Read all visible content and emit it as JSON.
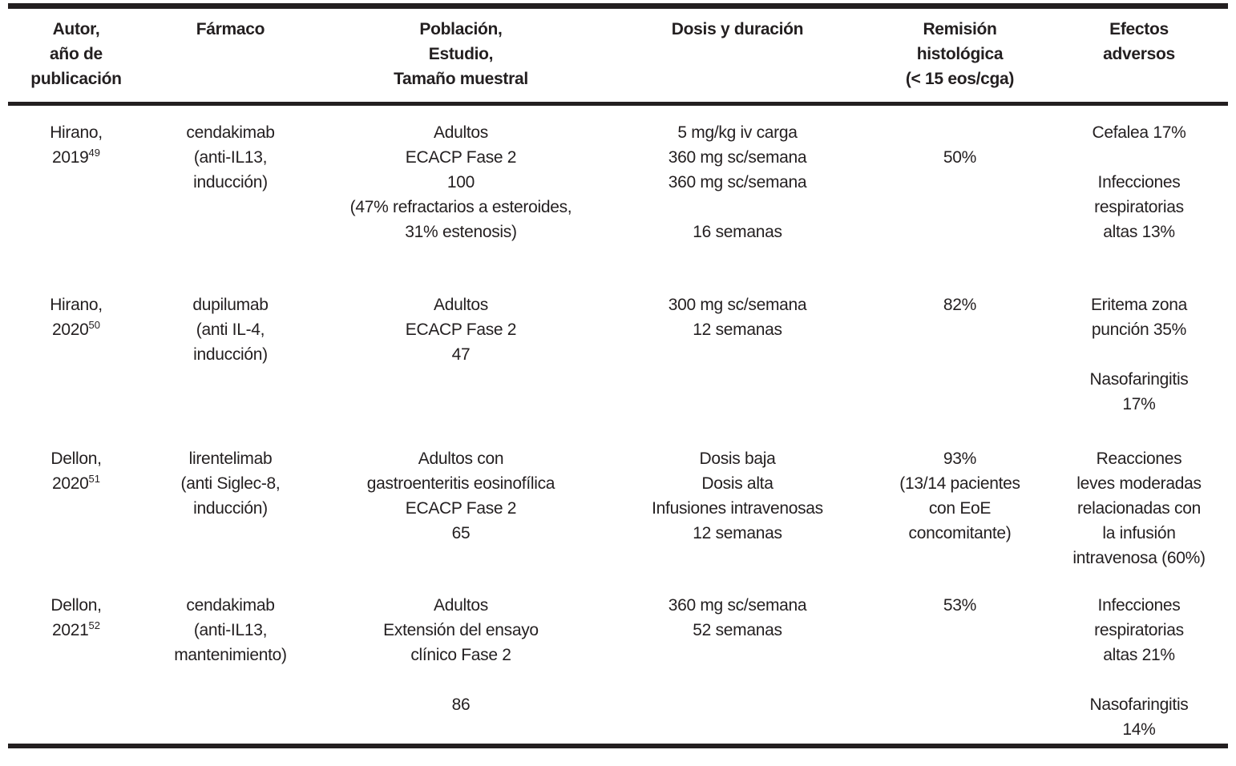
{
  "colors": {
    "text": "#231f20",
    "rule": "#231f20",
    "background": "#ffffff"
  },
  "table": {
    "columns": [
      {
        "id": "autor",
        "lines": [
          "Autor,",
          "año de",
          "publicación"
        ]
      },
      {
        "id": "farmaco",
        "lines": [
          "Fármaco"
        ]
      },
      {
        "id": "poblacion",
        "lines": [
          "Población,",
          "Estudio,",
          "Tamaño muestral"
        ]
      },
      {
        "id": "dosis",
        "lines": [
          "Dosis y duración"
        ]
      },
      {
        "id": "remision",
        "lines": [
          "Remisión",
          "histológica",
          "(< 15 eos/cga)"
        ]
      },
      {
        "id": "efectos",
        "lines": [
          "Efectos",
          "adversos"
        ]
      }
    ],
    "rows": [
      {
        "author_name": "Hirano,",
        "author_year": "2019",
        "author_ref": "49",
        "farmaco": [
          "cendakimab",
          "(anti-IL13,",
          "inducción)"
        ],
        "poblacion": [
          "Adultos",
          "ECACP Fase 2",
          "100",
          "(47% refractarios a esteroides,",
          "31% estenosis)"
        ],
        "dosis": [
          "5 mg/kg iv carga",
          "360 mg sc/semana",
          "360 mg sc/semana",
          "",
          "16 semanas"
        ],
        "remision": [
          "",
          "50%"
        ],
        "efectos": [
          "Cefalea 17%",
          "",
          "Infecciones",
          "respiratorias",
          "altas 13%"
        ]
      },
      {
        "author_name": "Hirano,",
        "author_year": "2020",
        "author_ref": "50",
        "farmaco": [
          "dupilumab",
          "(anti IL-4,",
          "inducción)"
        ],
        "poblacion": [
          "Adultos",
          "ECACP Fase 2",
          "47"
        ],
        "dosis": [
          "300 mg sc/semana",
          "12 semanas"
        ],
        "remision": [
          "82%"
        ],
        "efectos": [
          "Eritema zona",
          "punción 35%",
          "",
          "Nasofaringitis",
          "17%"
        ]
      },
      {
        "author_name": "Dellon,",
        "author_year": "2020",
        "author_ref": "51",
        "farmaco": [
          "lirentelimab",
          "(anti Siglec-8,",
          "inducción)"
        ],
        "poblacion": [
          "Adultos con",
          "gastroenteritis eosinofílica",
          "ECACP Fase 2",
          "65"
        ],
        "dosis": [
          "Dosis baja",
          "Dosis alta",
          "Infusiones intravenosas",
          "12 semanas"
        ],
        "remision": [
          "93%",
          "(13/14 pacientes",
          "con EoE",
          "concomitante)"
        ],
        "efectos": [
          "Reacciones",
          "leves moderadas",
          "relacionadas con",
          "la infusión",
          "intravenosa (60%)"
        ]
      },
      {
        "author_name": "Dellon,",
        "author_year": "2021",
        "author_ref": "52",
        "farmaco": [
          "cendakimab",
          "(anti-IL13,",
          "mantenimiento)"
        ],
        "poblacion": [
          "Adultos",
          "Extensión del ensayo",
          "clínico Fase 2",
          "",
          "86"
        ],
        "dosis": [
          "360 mg sc/semana",
          "52 semanas"
        ],
        "remision": [
          "53%"
        ],
        "efectos": [
          "Infecciones",
          "respiratorias",
          "altas 21%",
          "",
          "Nasofaringitis",
          "14%"
        ]
      }
    ]
  }
}
